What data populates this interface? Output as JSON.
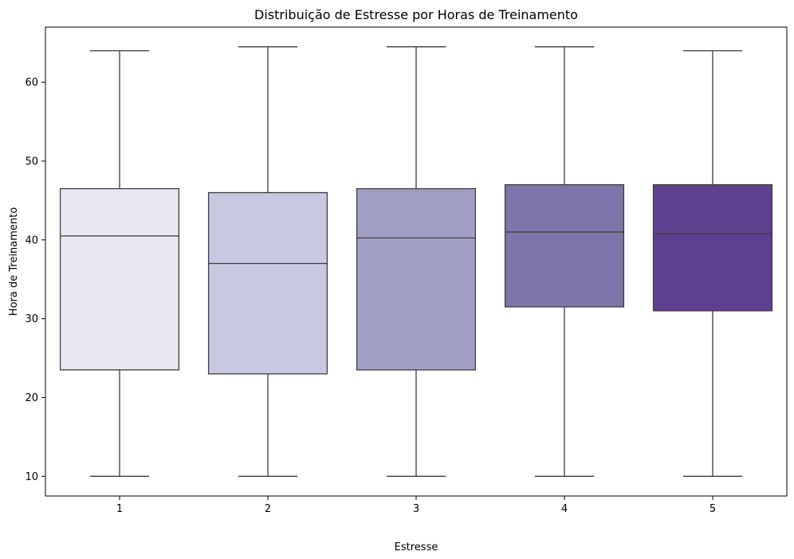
{
  "chart_data": {
    "type": "box",
    "title": "Distribuição de Estresse por Horas de Treinamento",
    "xlabel": "Estresse",
    "ylabel": "Hora de Treinamento",
    "categories": [
      "1",
      "2",
      "3",
      "4",
      "5"
    ],
    "yticks": [
      "10",
      "20",
      "30",
      "40",
      "50",
      "60"
    ],
    "ylim": [
      7.5,
      67.0
    ],
    "grid": false,
    "boxes": [
      {
        "category": "1",
        "min": 10,
        "q1": 23.5,
        "median": 40.5,
        "q3": 46.5,
        "max": 64.0,
        "color": "#e8e6f2"
      },
      {
        "category": "2",
        "min": 10,
        "q1": 23.0,
        "median": 37.0,
        "q3": 46.0,
        "max": 64.5,
        "color": "#c8c9e1"
      },
      {
        "category": "3",
        "min": 10,
        "q1": 23.5,
        "median": 40.25,
        "q3": 46.5,
        "max": 64.5,
        "color": "#a29fc5"
      },
      {
        "category": "4",
        "min": 10,
        "q1": 31.5,
        "median": 41.0,
        "q3": 47.0,
        "max": 64.5,
        "color": "#7e75aa"
      },
      {
        "category": "5",
        "min": 10,
        "q1": 31.0,
        "median": 40.75,
        "q3": 47.0,
        "max": 64.0,
        "color": "#5f3f8f"
      }
    ]
  }
}
